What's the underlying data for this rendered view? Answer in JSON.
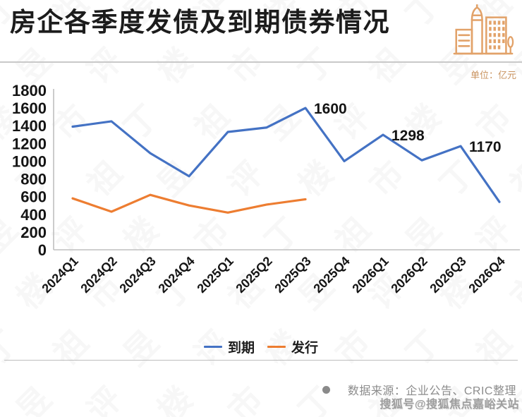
{
  "header": {
    "title": "房企各季度发债及到期债券情况",
    "unit_label": "单位：亿元"
  },
  "chart_data": {
    "type": "line",
    "title": "房企各季度发债及到期债券情况",
    "unit": "亿元",
    "categories": [
      "2024Q1",
      "2024Q2",
      "2024Q3",
      "2024Q4",
      "2025Q1",
      "2025Q2",
      "2025Q3",
      "2025Q4",
      "2026Q1",
      "2026Q2",
      "2026Q3",
      "2026Q4"
    ],
    "series": [
      {
        "name": "到期",
        "color": "#4472C4",
        "values": [
          1390,
          1450,
          1090,
          830,
          1330,
          1380,
          1600,
          1000,
          1298,
          1010,
          1170,
          540
        ]
      },
      {
        "name": "发行",
        "color": "#ED7D31",
        "values": [
          580,
          430,
          620,
          500,
          420,
          510,
          570,
          null,
          null,
          null,
          null,
          null
        ]
      }
    ],
    "annotations": [
      {
        "series": 0,
        "index": 6,
        "label": "1600"
      },
      {
        "series": 0,
        "index": 8,
        "label": "1298"
      },
      {
        "series": 0,
        "index": 10,
        "label": "1170"
      }
    ],
    "ylim": [
      0,
      1800
    ],
    "yticks": [
      0,
      200,
      400,
      600,
      800,
      1000,
      1200,
      1400,
      1600,
      1800
    ],
    "grid": false,
    "legend_position": "bottom"
  },
  "footer": {
    "source_text": "数据来源：企业公告、CRIC整理",
    "watermark": "搜狐号@搜狐焦点嘉峪关站"
  },
  "background_watermark_text": "丁祖昱评楼市",
  "colors": {
    "series_maturity": "#4472C4",
    "series_issuance": "#ED7D31",
    "icon_accent": "#E2A269",
    "unit_text": "#C9935F",
    "axis": "#BFBFBF",
    "source_text": "#8C8C8C"
  }
}
